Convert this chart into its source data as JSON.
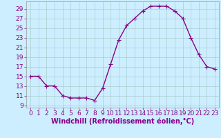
{
  "x": [
    0,
    1,
    2,
    3,
    4,
    5,
    6,
    7,
    8,
    9,
    10,
    11,
    12,
    13,
    14,
    15,
    16,
    17,
    18,
    19,
    20,
    21,
    22,
    23
  ],
  "y": [
    15,
    15,
    13,
    13,
    11,
    10.5,
    10.5,
    10.5,
    10,
    12.5,
    17.5,
    22.5,
    25.5,
    27,
    28.5,
    29.5,
    29.5,
    29.5,
    28.5,
    27,
    23,
    19.5,
    17,
    16.5
  ],
  "line_color": "#880088",
  "marker_color": "#880088",
  "bg_color": "#cceeff",
  "grid_color": "#aacccc",
  "xlabel": "Windchill (Refroidissement éolien,°C)",
  "yticks": [
    9,
    11,
    13,
    15,
    17,
    19,
    21,
    23,
    25,
    27,
    29
  ],
  "xticks": [
    0,
    1,
    2,
    3,
    4,
    5,
    6,
    7,
    8,
    9,
    10,
    11,
    12,
    13,
    14,
    15,
    16,
    17,
    18,
    19,
    20,
    21,
    22,
    23
  ],
  "ylim": [
    8.5,
    30.5
  ],
  "xlim": [
    -0.5,
    23.5
  ],
  "xlabel_fontsize": 7,
  "tick_fontsize": 6.5,
  "line_width": 1.0,
  "marker_size": 2.0
}
